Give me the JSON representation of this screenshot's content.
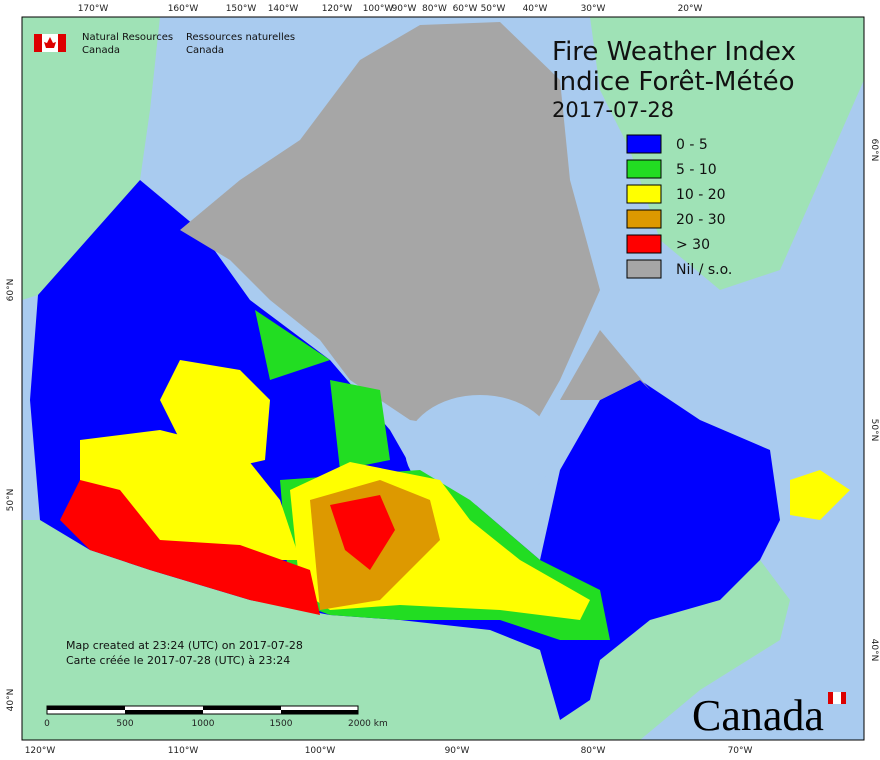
{
  "agency": {
    "en": [
      "Natural Resources",
      "Canada"
    ],
    "fr": [
      "Ressources naturelles",
      "Canada"
    ]
  },
  "title": {
    "en": "Fire Weather Index",
    "fr": "Indice Forêt-Météo",
    "date": "2017-07-28"
  },
  "legend": [
    {
      "label": "0 - 5",
      "color": "#0000ff"
    },
    {
      "label": "5 - 10",
      "color": "#22dd22"
    },
    {
      "label": "10 - 20",
      "color": "#ffff00"
    },
    {
      "label": "20 - 30",
      "color": "#dd9900"
    },
    {
      "label": "> 30",
      "color": "#ff0000"
    },
    {
      "label": "Nil / s.o.",
      "color": "#a6a6a6"
    }
  ],
  "graticule": {
    "top": [
      "170°W",
      "160°W",
      "150°W",
      "140°W",
      "120°W",
      "100°W",
      "90°W",
      "80°W",
      "60°W",
      "50°W",
      "40°W",
      "30°W",
      "20°W"
    ],
    "bottom": [
      "120°W",
      "110°W",
      "100°W",
      "90°W",
      "80°W",
      "70°W"
    ],
    "left": [
      "60°N",
      "50°N",
      "40°N"
    ],
    "right": [
      "60°N",
      "50°N",
      "40°N"
    ]
  },
  "notes": [
    "Map created at 23:24 (UTC) on 2017-07-28",
    "Carte créée le 2017-07-28 (UTC) à 23:24"
  ],
  "scale": [
    "0",
    "500",
    "1000",
    "1500",
    "2000 km"
  ],
  "wordmark": "Canada"
}
